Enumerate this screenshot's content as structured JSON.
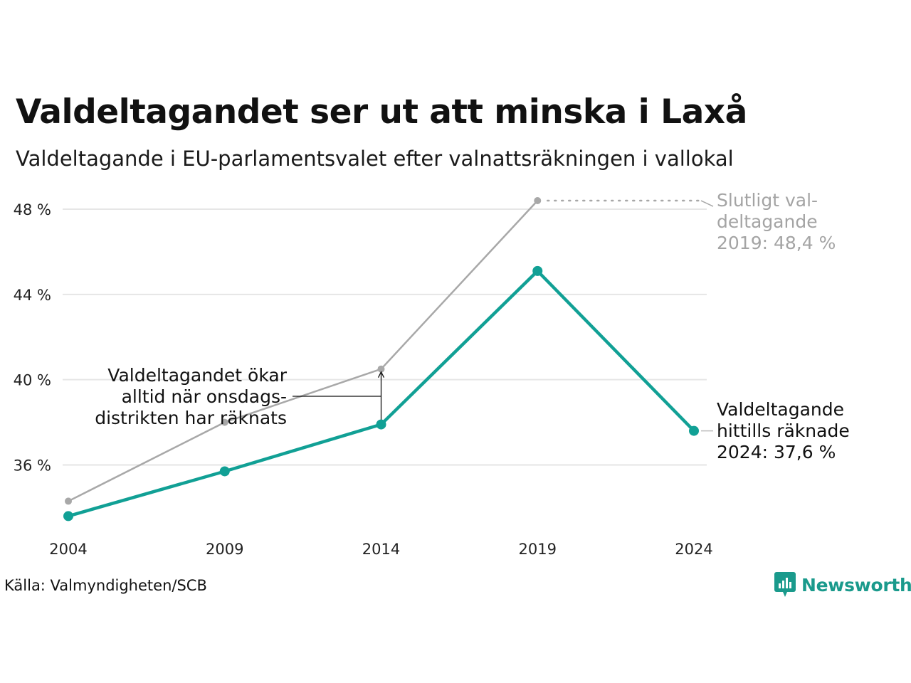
{
  "title": "Valdeltagandet ser ut att minska i Laxå",
  "subtitle": "Valdeltagande i EU-parlamentsvalet efter valnattsräkningen i vallokal",
  "source": "Källa: Valmyndigheten/SCB",
  "brand": "Newsworthy",
  "colors": {
    "current": "#11a095",
    "final": "#a8a8a8",
    "grid": "#e6e6e6",
    "annotation": "#111111",
    "brand": "#1a9a8c"
  },
  "chart_data": {
    "type": "line",
    "x": [
      2004,
      2009,
      2014,
      2019,
      2024
    ],
    "y_ticks": [
      36,
      40,
      44,
      48
    ],
    "y_tick_labels": [
      "36 %",
      "40 %",
      "44 %",
      "48 %"
    ],
    "ylim": [
      33,
      49.5
    ],
    "grid": true,
    "series": [
      {
        "key": "final",
        "values": [
          34.3,
          38.0,
          40.5,
          48.4,
          null
        ]
      },
      {
        "key": "current",
        "values": [
          33.6,
          35.7,
          37.9,
          45.1,
          37.6
        ]
      }
    ],
    "annotations": {
      "final_label": [
        "Slutligt val-",
        "deltagande",
        "2019: 48,4 %"
      ],
      "current_label": [
        "Valdeltagande",
        "hittills räknade",
        "2024: 37,6 %"
      ],
      "increase_note": [
        "Valdeltagandet ökar",
        "alltid när onsdags-",
        "distrikten har räknats"
      ]
    }
  }
}
